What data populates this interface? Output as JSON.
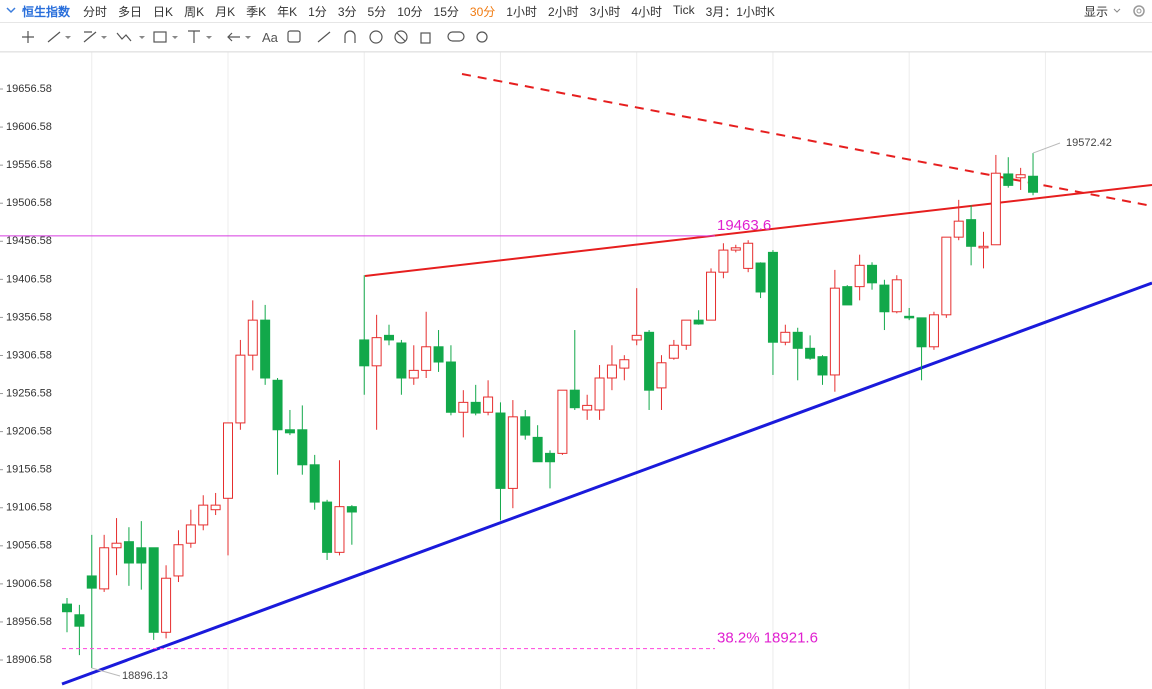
{
  "toolbar": {
    "symbol": "恒生指数",
    "periods": [
      "分时",
      "多日",
      "日K",
      "周K",
      "月K",
      "季K",
      "年K",
      "1分",
      "3分",
      "5分",
      "10分",
      "15分",
      "30分",
      "1小时",
      "2小时",
      "3小时",
      "4小时",
      "Tick"
    ],
    "active_period": "30分",
    "range_select": "3月：1小时K",
    "display": "显示",
    "text_tool": "Aa"
  },
  "chart_data": {
    "type": "candlestick",
    "up_color": "#e62e2e",
    "down_color": "#12a84a",
    "ylim": [
      18868.5,
      19705.2
    ],
    "yticks": [
      19656.58,
      19606.58,
      19556.58,
      19506.58,
      19456.58,
      19406.58,
      19356.58,
      19306.58,
      19256.58,
      19206.58,
      19156.58,
      19106.58,
      19056.58,
      19006.58,
      18956.58,
      18906.58
    ],
    "open": [
      18980,
      18966,
      19017,
      19000,
      19054,
      19062,
      19054,
      19054,
      18943,
      19017,
      19060,
      19084,
      19104,
      19119,
      19218,
      19307,
      19353,
      19274,
      19209,
      19209,
      19163,
      19114,
      19048,
      19108,
      19327,
      19293,
      19333,
      19323,
      19277,
      19287,
      19318,
      19298,
      19232,
      19245,
      19232,
      19231,
      19132,
      19226,
      19199,
      19178,
      19178,
      19261,
      19235,
      19235,
      19277,
      19290,
      19327,
      19337,
      19264,
      19303,
      19320,
      19353,
      19353,
      19416,
      19445,
      19421,
      19428,
      19442,
      19324,
      19337,
      19316,
      19305,
      19281,
      19397,
      19397,
      19425,
      19399,
      19364,
      19358,
      19356,
      19318,
      19360,
      19462,
      19485,
      19448,
      19452,
      19545,
      19540,
      19542
    ],
    "high": [
      18988,
      18979,
      19071,
      19071,
      19093,
      19081,
      19089,
      19054,
      19031,
      19077,
      19104,
      19123,
      19126,
      19218,
      19327,
      19379,
      19373,
      19277,
      19235,
      19241,
      19176,
      19117,
      19169,
      19110,
      19412,
      19360,
      19347,
      19327,
      19320,
      19364,
      19340,
      19320,
      19261,
      19268,
      19274,
      19245,
      19248,
      19235,
      19215,
      19182,
      19261,
      19340,
      19255,
      19294,
      19320,
      19307,
      19395,
      19340,
      19307,
      19327,
      19353,
      19366,
      19421,
      19454,
      19452,
      19458,
      19429,
      19445,
      19347,
      19343,
      19333,
      19307,
      19419,
      19399,
      19439,
      19429,
      19406,
      19412,
      19369,
      19356,
      19364,
      19462,
      19511,
      19504,
      19469,
      19570,
      19567,
      19553,
      19572.42
    ],
    "low": [
      18943,
      18913,
      18896.13,
      18996,
      19018,
      19004,
      18999,
      18933,
      18935,
      19009,
      19054,
      19077,
      19097,
      19044,
      19209,
      19287,
      19268,
      19150,
      19202,
      19150,
      19104,
      19038,
      19044,
      19058,
      19255,
      19209,
      19320,
      19255,
      19268,
      19277,
      19285,
      19228,
      19199,
      19228,
      19228,
      19090,
      19106,
      19196,
      19167,
      19132,
      19176,
      19235,
      19222,
      19222,
      19261,
      19274,
      19320,
      19235,
      19235,
      19301,
      19314,
      19347,
      19353,
      19408,
      19442,
      19416,
      19382,
      19281,
      19320,
      19274,
      19301,
      19268,
      19259,
      19373,
      19379,
      19393,
      19340,
      19362,
      19353,
      19274,
      19314,
      19356,
      19458,
      19425,
      19421,
      19452,
      19527,
      19524,
      19517
    ],
    "close": [
      18970,
      18951,
      19001,
      19054,
      19060,
      19034,
      19034,
      18943,
      19014,
      19058,
      19084,
      19110,
      19110,
      19218,
      19307,
      19353,
      19277,
      19209,
      19205,
      19163,
      19114,
      19048,
      19108,
      19101,
      19293,
      19330,
      19327,
      19277,
      19287,
      19318,
      19298,
      19232,
      19245,
      19231,
      19252,
      19132,
      19226,
      19202,
      19167,
      19167,
      19261,
      19238,
      19241,
      19277,
      19294,
      19301,
      19333,
      19261,
      19297,
      19320,
      19353,
      19348,
      19416,
      19445,
      19448,
      19454,
      19390,
      19324,
      19337,
      19316,
      19303,
      19281,
      19395,
      19373,
      19425,
      19402,
      19364,
      19406,
      19356,
      19318,
      19360,
      19462,
      19483,
      19450,
      19450,
      19546,
      19530,
      19544,
      19521
    ],
    "levels": [
      19463.6,
      {
        "value": 18921.6,
        "label": "38.2% 18921.6"
      }
    ]
  }
}
